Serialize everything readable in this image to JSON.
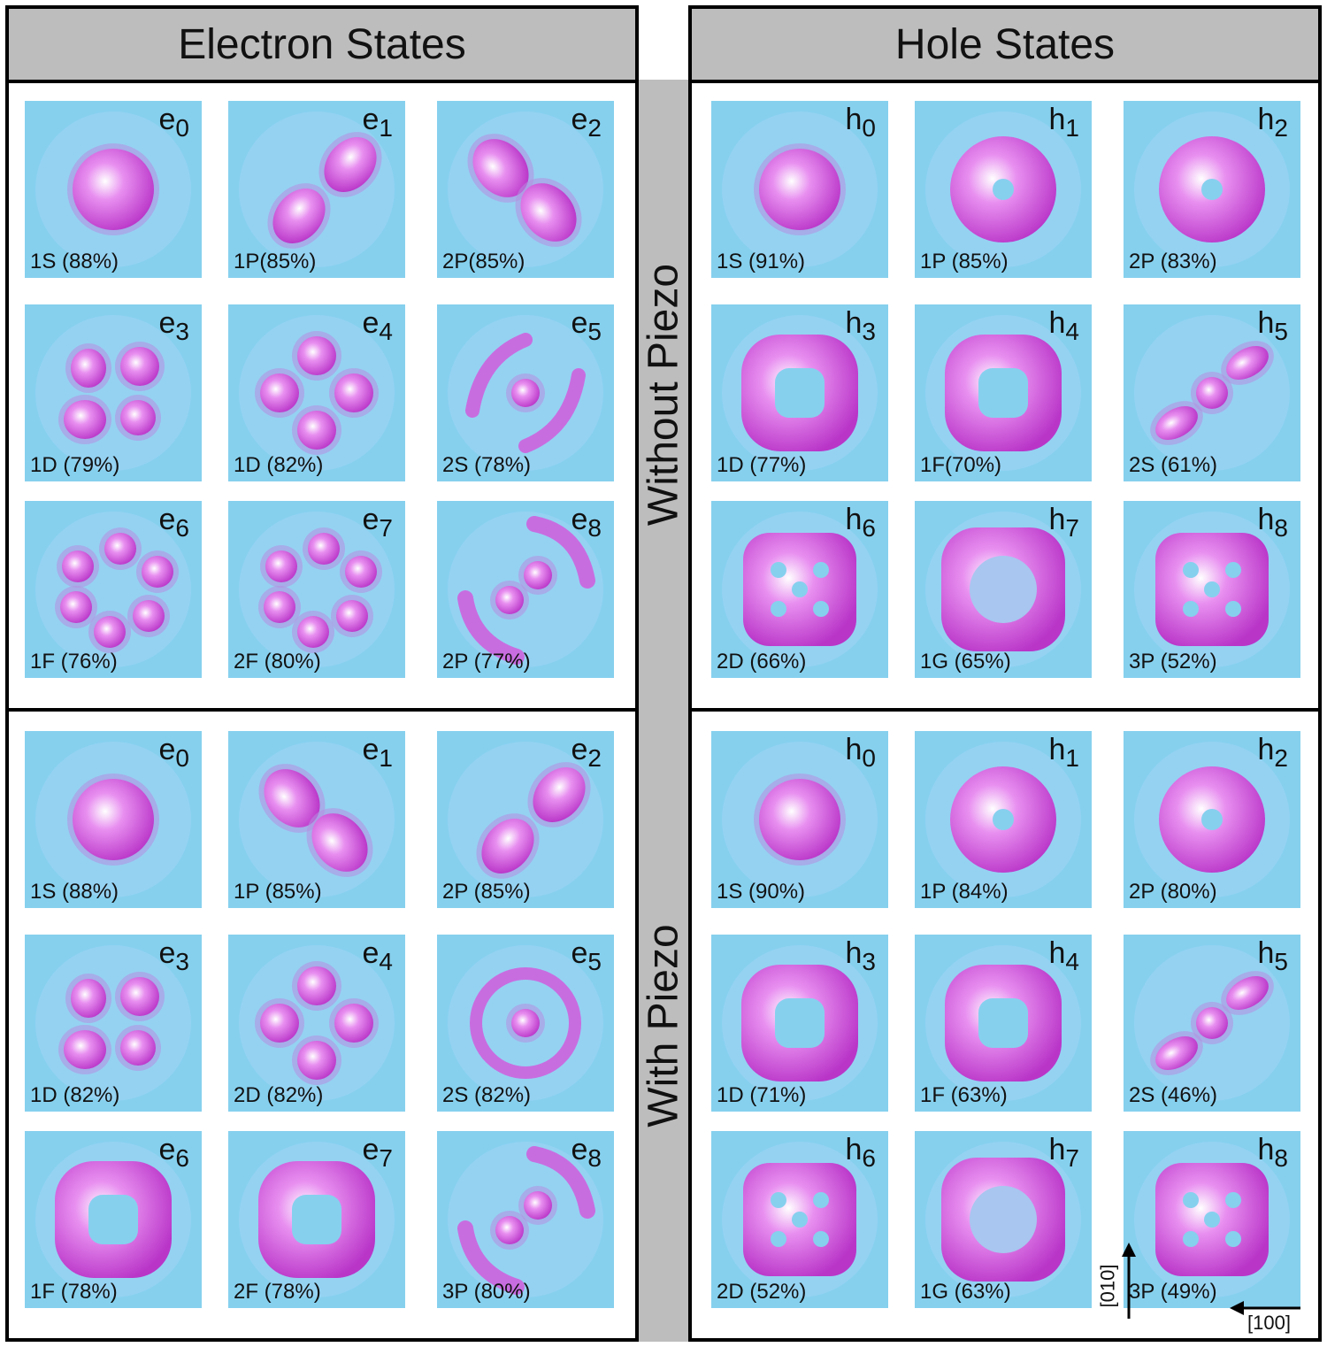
{
  "headers": {
    "electron": "Electron States",
    "hole": "Hole States"
  },
  "rows": {
    "without": "Without Piezo",
    "with": "With Piezo"
  },
  "axes": {
    "x_dir": "[100]",
    "y_dir": "[010]"
  },
  "colors": {
    "panel_bg": "#86d0ee",
    "lobe": "#d65be0",
    "header_bg": "#bdbdbd"
  },
  "sections": [
    {
      "name": "electron-without",
      "panels": [
        {
          "sym": "e",
          "idx": "0",
          "label": "1S (88%)",
          "shape": "s"
        },
        {
          "sym": "e",
          "idx": "1",
          "label": "1P(85%)",
          "shape": "p"
        },
        {
          "sym": "e",
          "idx": "2",
          "label": "2P(85%)",
          "shape": "p2"
        },
        {
          "sym": "e",
          "idx": "3",
          "label": "1D (79%)",
          "shape": "d4"
        },
        {
          "sym": "e",
          "idx": "4",
          "label": "1D (82%)",
          "shape": "d4r"
        },
        {
          "sym": "e",
          "idx": "5",
          "label": "2S (78%)",
          "shape": "arcs"
        },
        {
          "sym": "e",
          "idx": "6",
          "label": "1F (76%)",
          "shape": "f6"
        },
        {
          "sym": "e",
          "idx": "7",
          "label": "2F (80%)",
          "shape": "f6"
        },
        {
          "sym": "e",
          "idx": "8",
          "label": "2P (77%)",
          "shape": "arcs2"
        }
      ]
    },
    {
      "name": "hole-without",
      "panels": [
        {
          "sym": "h",
          "idx": "0",
          "label": "1S (91%)",
          "shape": "s"
        },
        {
          "sym": "h",
          "idx": "1",
          "label": "1P (85%)",
          "shape": "ring"
        },
        {
          "sym": "h",
          "idx": "2",
          "label": "2P (83%)",
          "shape": "ring"
        },
        {
          "sym": "h",
          "idx": "3",
          "label": "1D (77%)",
          "shape": "sqring"
        },
        {
          "sym": "h",
          "idx": "4",
          "label": "1F(70%)",
          "shape": "sqring"
        },
        {
          "sym": "h",
          "idx": "5",
          "label": "2S (61%)",
          "shape": "hs"
        },
        {
          "sym": "h",
          "idx": "6",
          "label": "2D (66%)",
          "shape": "blob"
        },
        {
          "sym": "h",
          "idx": "7",
          "label": "1G (65%)",
          "shape": "blobring"
        },
        {
          "sym": "h",
          "idx": "8",
          "label": "3P (52%)",
          "shape": "blob"
        }
      ]
    },
    {
      "name": "electron-with",
      "panels": [
        {
          "sym": "e",
          "idx": "0",
          "label": "1S (88%)",
          "shape": "s"
        },
        {
          "sym": "e",
          "idx": "1",
          "label": "1P (85%)",
          "shape": "p2"
        },
        {
          "sym": "e",
          "idx": "2",
          "label": "2P (85%)",
          "shape": "p"
        },
        {
          "sym": "e",
          "idx": "3",
          "label": "1D (82%)",
          "shape": "d4"
        },
        {
          "sym": "e",
          "idx": "4",
          "label": "2D (82%)",
          "shape": "d4r"
        },
        {
          "sym": "e",
          "idx": "5",
          "label": "2S (82%)",
          "shape": "target"
        },
        {
          "sym": "e",
          "idx": "6",
          "label": "1F (78%)",
          "shape": "sqring"
        },
        {
          "sym": "e",
          "idx": "7",
          "label": "2F (78%)",
          "shape": "sqring"
        },
        {
          "sym": "e",
          "idx": "8",
          "label": "3P (80%)",
          "shape": "arcs2"
        }
      ]
    },
    {
      "name": "hole-with",
      "panels": [
        {
          "sym": "h",
          "idx": "0",
          "label": "1S (90%)",
          "shape": "s"
        },
        {
          "sym": "h",
          "idx": "1",
          "label": "1P (84%)",
          "shape": "ring"
        },
        {
          "sym": "h",
          "idx": "2",
          "label": "2P (80%)",
          "shape": "ring"
        },
        {
          "sym": "h",
          "idx": "3",
          "label": "1D (71%)",
          "shape": "sqring"
        },
        {
          "sym": "h",
          "idx": "4",
          "label": "1F (63%)",
          "shape": "sqring"
        },
        {
          "sym": "h",
          "idx": "5",
          "label": "2S (46%)",
          "shape": "hs"
        },
        {
          "sym": "h",
          "idx": "6",
          "label": "2D (52%)",
          "shape": "blob"
        },
        {
          "sym": "h",
          "idx": "7",
          "label": "1G (63%)",
          "shape": "blobring"
        },
        {
          "sym": "h",
          "idx": "8",
          "label": "3P (49%)",
          "shape": "blob"
        }
      ]
    }
  ]
}
